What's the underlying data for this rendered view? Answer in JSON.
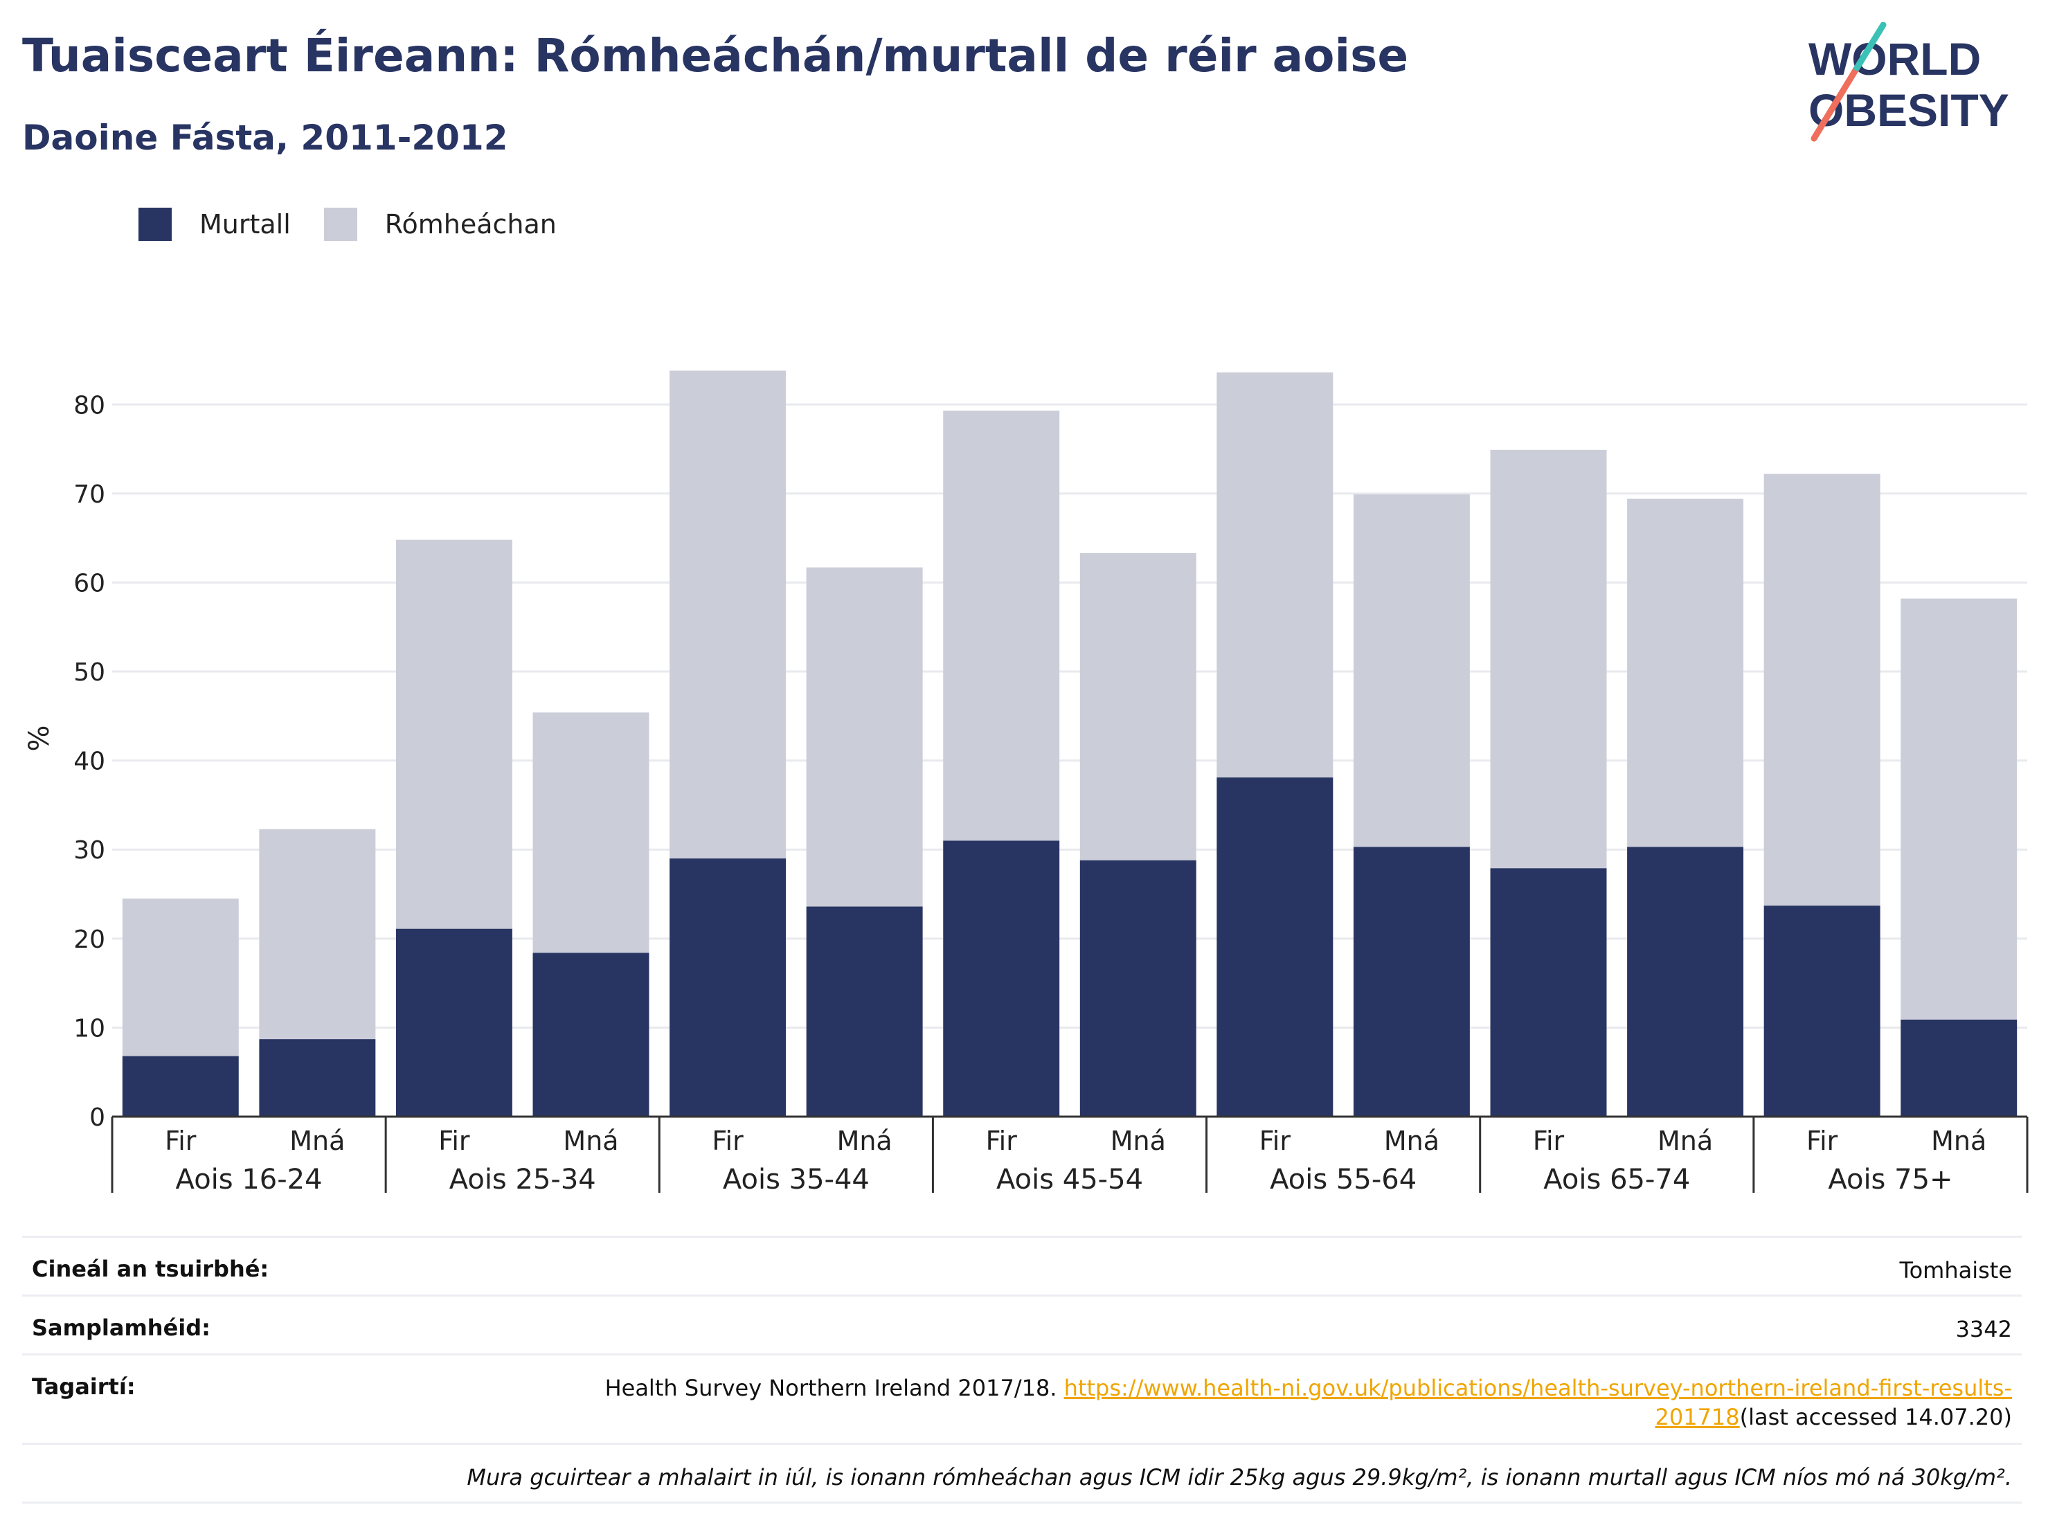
{
  "title": "Tuaisceart Éireann: Rómheáchán/murtall de réir aoise",
  "subtitle": "Daoine Fásta, 2011-2012",
  "logo": {
    "line1": "WORLD",
    "line2": "OBESITY"
  },
  "colors": {
    "obesity": "#283462",
    "overweight": "#cbcdd8",
    "accent_teal": "#3bc1b6",
    "accent_coral": "#ef6e5c",
    "link": "#f0a500"
  },
  "legend": [
    {
      "label": "Murtall",
      "color": "#283462"
    },
    {
      "label": "Rómheáchan",
      "color": "#cbcdd8"
    }
  ],
  "chart_data": {
    "type": "bar",
    "stacked": true,
    "ylabel": "%",
    "ylim": [
      0,
      85
    ],
    "yticks": [
      0,
      10,
      20,
      30,
      40,
      50,
      60,
      70,
      80
    ],
    "grid": true,
    "legend_position": "top-left",
    "groups": [
      "Aois 16-24",
      "Aois 25-34",
      "Aois 35-44",
      "Aois 45-54",
      "Aois 55-64",
      "Aois 65-74",
      "Aois 75+"
    ],
    "categories": [
      "Fir",
      "Mná",
      "Fir",
      "Mná",
      "Fir",
      "Mná",
      "Fir",
      "Mná",
      "Fir",
      "Mná",
      "Fir",
      "Mná",
      "Fir",
      "Mná"
    ],
    "series": [
      {
        "name": "Murtall",
        "color": "#283462",
        "values": [
          6.8,
          8.7,
          21.1,
          18.4,
          29.0,
          23.6,
          31.0,
          28.8,
          38.1,
          30.3,
          27.9,
          30.3,
          23.7,
          10.9
        ]
      },
      {
        "name": "Rómheáchan",
        "color": "#cbcdd8",
        "values": [
          17.7,
          23.6,
          43.7,
          27.0,
          54.8,
          38.1,
          48.3,
          34.5,
          45.5,
          39.6,
          47.0,
          39.1,
          48.5,
          47.3
        ]
      }
    ]
  },
  "info": {
    "survey_type_label": "Cineál an tsuirbhé:",
    "survey_type_value": "Tomhaiste",
    "sample_label": "Samplamhéid:",
    "sample_value": "3342",
    "references_label": "Tagairtí:",
    "references_text": "Health Survey Northern Ireland 2017/18.",
    "references_link_1": "https://www.health-ni.gov.uk/publications/health-survey-northern-ireland-first-results-",
    "references_link_2": "201718",
    "references_accessed": "(last accessed 14.07.20)",
    "note": "Mura gcuirtear a mhalairt in iúl, is ionann rómheáchan agus ICM idir 25kg agus 29.9kg/m², is ionann murtall agus ICM níos mó ná 30kg/m²."
  }
}
